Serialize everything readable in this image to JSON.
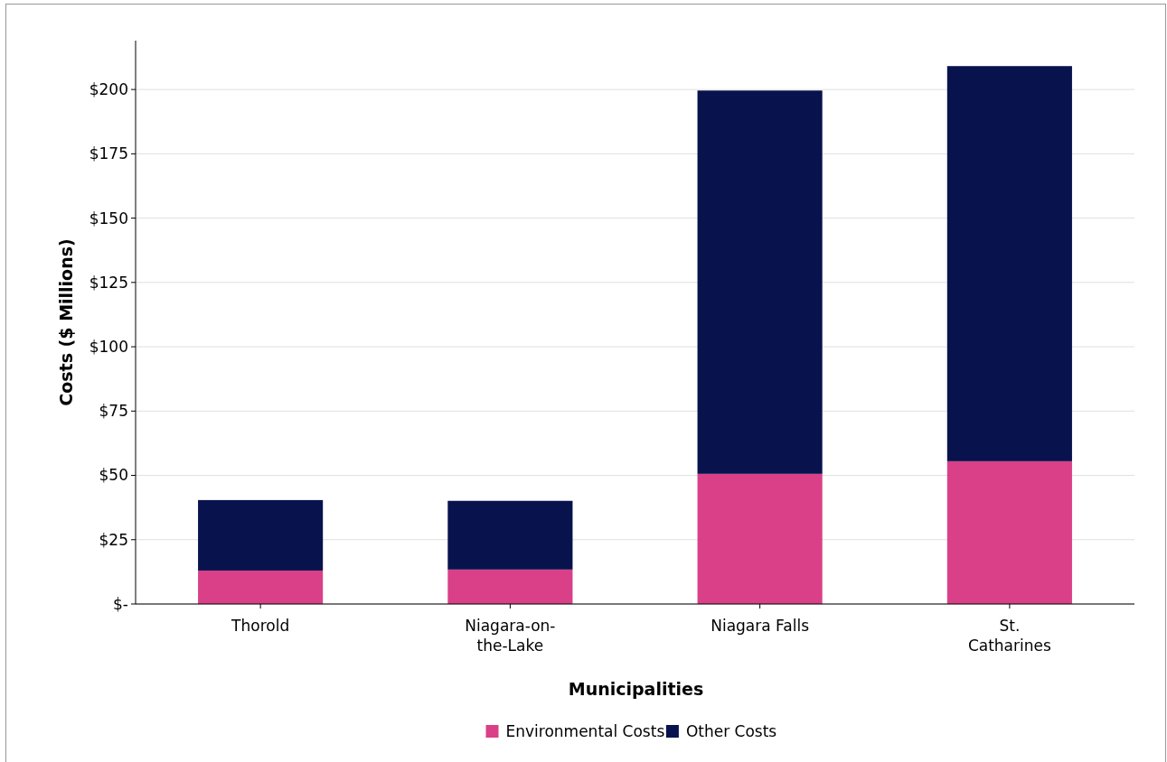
{
  "chart_data": {
    "type": "bar",
    "stacked": true,
    "xlabel": "Municipalities",
    "ylabel": "Costs ($ Millions)",
    "categories": [
      "Thorold",
      "Niagara-on-the-Lake",
      "Niagara Falls",
      "St. Catharines"
    ],
    "series": [
      {
        "name": "Environmental Costs",
        "color": "#d94088",
        "values": [
          13,
          13.4,
          50.6,
          55.5
        ]
      },
      {
        "name": "Other Costs",
        "color": "#08124d",
        "values": [
          27.4,
          26.7,
          149,
          153.6
        ]
      }
    ],
    "ylim": [
      0,
      219
    ],
    "yticks": [
      {
        "value": 0,
        "label": "$-"
      },
      {
        "value": 25,
        "label": "$25"
      },
      {
        "value": 50,
        "label": "$50"
      },
      {
        "value": 75,
        "label": "$75"
      },
      {
        "value": 100,
        "label": "$100"
      },
      {
        "value": 125,
        "label": "$125"
      },
      {
        "value": 150,
        "label": "$150"
      },
      {
        "value": 175,
        "label": "$175"
      },
      {
        "value": 200,
        "label": "$200"
      }
    ],
    "grid": "y",
    "legend": "bottom"
  }
}
